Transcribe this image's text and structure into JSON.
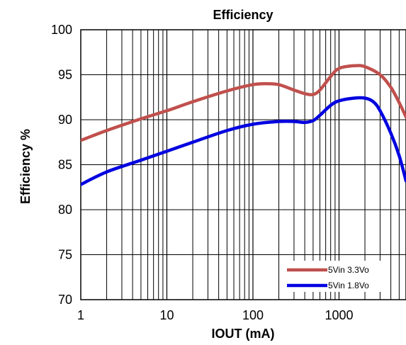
{
  "chart_data": {
    "type": "line",
    "title": "Efficiency",
    "xlabel": "IOUT (mA)",
    "ylabel": "Efficiency %",
    "x_scale": "log",
    "xlim": [
      1,
      6000
    ],
    "ylim": [
      70,
      100
    ],
    "x_ticks": [
      1,
      10,
      100,
      1000
    ],
    "x_tick_labels": [
      "1",
      "10",
      "100",
      "1000"
    ],
    "y_ticks": [
      70,
      75,
      80,
      85,
      90,
      95,
      100
    ],
    "y_tick_labels": [
      "70",
      "75",
      "80",
      "85",
      "90",
      "95",
      "100"
    ],
    "grid": true,
    "legend_position": "bottom-right",
    "series": [
      {
        "name": "5Vin 3.3Vo",
        "color": "#c0504d",
        "x": [
          1,
          2,
          5,
          10,
          20,
          50,
          100,
          150,
          200,
          300,
          400,
          500,
          600,
          800,
          1000,
          1500,
          2000,
          3000,
          4000,
          5000,
          6000
        ],
        "y": [
          87.7,
          88.8,
          90.1,
          91.0,
          92.0,
          93.2,
          93.9,
          94.0,
          93.9,
          93.3,
          92.9,
          92.8,
          93.3,
          94.8,
          95.7,
          96.0,
          95.9,
          95.0,
          93.6,
          91.9,
          90.3
        ]
      },
      {
        "name": "5Vin 1.8Vo",
        "color": "#0000e0",
        "x": [
          1,
          2,
          5,
          10,
          20,
          50,
          100,
          200,
          300,
          400,
          500,
          600,
          800,
          1000,
          1500,
          2000,
          2500,
          3000,
          4000,
          5000,
          6000
        ],
        "y": [
          82.8,
          84.2,
          85.5,
          86.5,
          87.5,
          88.8,
          89.5,
          89.8,
          89.8,
          89.7,
          89.9,
          90.5,
          91.6,
          92.1,
          92.4,
          92.4,
          92.0,
          91.0,
          88.5,
          86.0,
          83.2
        ]
      }
    ]
  }
}
